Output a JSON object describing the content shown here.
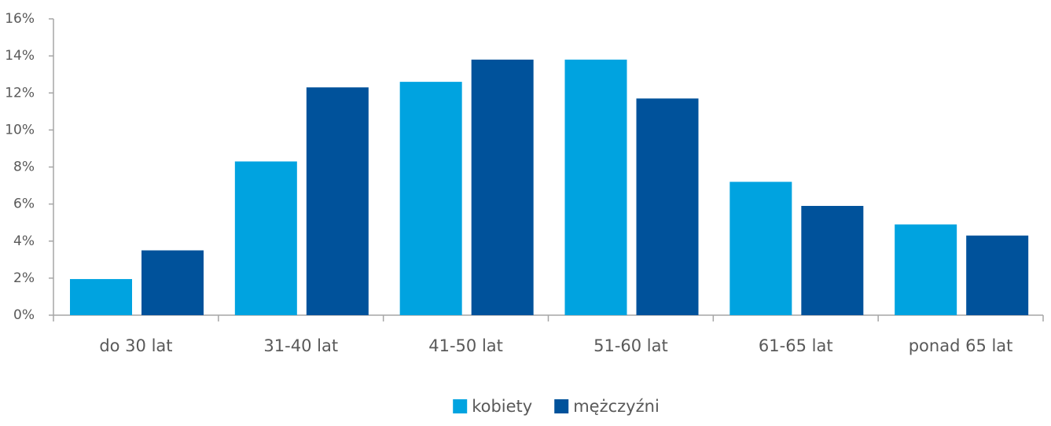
{
  "chart_data": {
    "type": "bar",
    "categories": [
      "do 30 lat",
      "31-40 lat",
      "41-50 lat",
      "51-60 lat",
      "61-65 lat",
      "ponad 65 lat"
    ],
    "series": [
      {
        "name": "kobiety",
        "color": "#00a3e0",
        "values": [
          1.95,
          8.3,
          12.6,
          13.8,
          7.2,
          4.9
        ]
      },
      {
        "name": "mężczyźni",
        "color": "#00529b",
        "values": [
          3.5,
          12.3,
          13.8,
          11.7,
          5.9,
          4.3
        ]
      }
    ],
    "ylim": [
      0,
      16
    ],
    "yticks": [
      {
        "value": 0,
        "label": "0%"
      },
      {
        "value": 2,
        "label": "2%"
      },
      {
        "value": 4,
        "label": "4%"
      },
      {
        "value": 6,
        "label": "6%"
      },
      {
        "value": 8,
        "label": "8%"
      },
      {
        "value": 10,
        "label": "10%"
      },
      {
        "value": 12,
        "label": "12%"
      },
      {
        "value": 14,
        "label": "14%"
      },
      {
        "value": 16,
        "label": "16%"
      }
    ],
    "grid": false,
    "legend": "bottom"
  }
}
